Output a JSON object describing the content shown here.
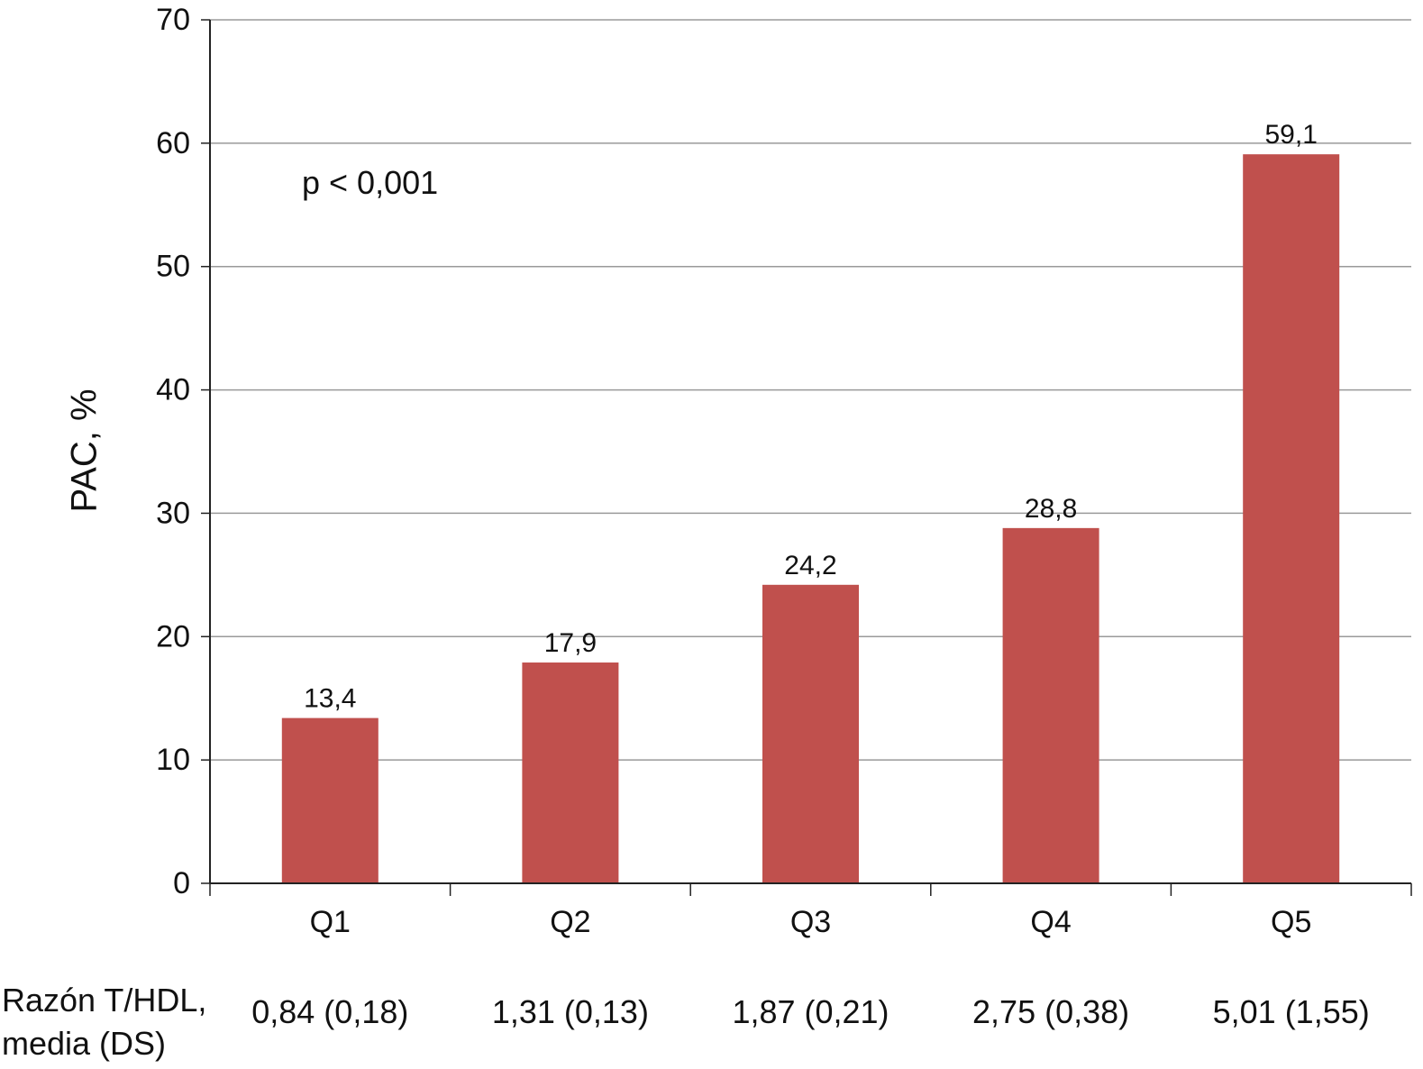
{
  "chart_data": {
    "type": "bar",
    "title": "",
    "xlabel": "",
    "ylabel": "PAC, %",
    "ylim": [
      0,
      70
    ],
    "yticks": [
      0,
      10,
      20,
      30,
      40,
      50,
      60,
      70
    ],
    "grid": true,
    "categories": [
      "Q1",
      "Q2",
      "Q3",
      "Q4",
      "Q5"
    ],
    "values": [
      13.4,
      17.9,
      24.2,
      28.8,
      59.1
    ],
    "data_labels": [
      "13,4",
      "17,9",
      "24,2",
      "28,8",
      "59,1"
    ],
    "bar_color": "#c0504d",
    "annotation": "p < 0,001",
    "table_row": {
      "label_line1": "Razón T/HDL,",
      "label_line2": "media (DS)",
      "values": [
        "0,84 (0,18)",
        "1,31 (0,13)",
        "1,87 (0,21)",
        "2,75 (0,38)",
        "5,01 (1,55)"
      ]
    }
  }
}
